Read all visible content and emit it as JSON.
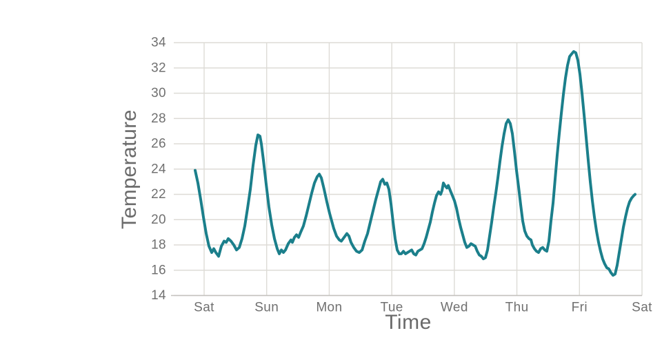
{
  "figure": {
    "background": "#ffffff"
  },
  "chart_data": {
    "type": "line",
    "title": "",
    "xlabel": "Time",
    "ylabel": "Temperature",
    "legend": "none",
    "grid": true,
    "xlim": [
      -0.485,
      7.0
    ],
    "ylim": [
      14,
      34
    ],
    "y_ticks": [
      14,
      16,
      18,
      20,
      22,
      24,
      26,
      28,
      30,
      32,
      34
    ],
    "x_tick_positions": [
      0,
      1,
      2,
      3,
      4,
      5,
      6,
      7
    ],
    "x_tick_labels": [
      "Sat",
      "Sun",
      "Mon",
      "Tue",
      "Wed",
      "Thu",
      "Fri",
      "Sat"
    ],
    "colors": {
      "line": "#1b7f8b",
      "grid": "#dddbd6",
      "spine": "#c3c1bd",
      "tick_label": "#707070",
      "axis_label": "#6a6a6a"
    },
    "series": [
      {
        "name": "temperature",
        "units": "degrees",
        "points": [
          [
            -0.143,
            23.9
          ],
          [
            -0.099,
            22.9
          ],
          [
            -0.055,
            21.6
          ],
          [
            -0.011,
            20.2
          ],
          [
            0.033,
            18.9
          ],
          [
            0.077,
            17.9
          ],
          [
            0.121,
            17.4
          ],
          [
            0.154,
            17.7
          ],
          [
            0.187,
            17.4
          ],
          [
            0.232,
            17.1
          ],
          [
            0.276,
            17.9
          ],
          [
            0.32,
            18.3
          ],
          [
            0.353,
            18.2
          ],
          [
            0.386,
            18.5
          ],
          [
            0.43,
            18.3
          ],
          [
            0.474,
            18.0
          ],
          [
            0.518,
            17.6
          ],
          [
            0.562,
            17.8
          ],
          [
            0.606,
            18.5
          ],
          [
            0.65,
            19.5
          ],
          [
            0.694,
            20.9
          ],
          [
            0.739,
            22.4
          ],
          [
            0.783,
            24.3
          ],
          [
            0.827,
            25.9
          ],
          [
            0.86,
            26.7
          ],
          [
            0.893,
            26.6
          ],
          [
            0.915,
            26.0
          ],
          [
            0.948,
            24.7
          ],
          [
            0.992,
            22.8
          ],
          [
            1.036,
            21.0
          ],
          [
            1.08,
            19.6
          ],
          [
            1.124,
            18.5
          ],
          [
            1.169,
            17.7
          ],
          [
            1.202,
            17.3
          ],
          [
            1.235,
            17.6
          ],
          [
            1.268,
            17.4
          ],
          [
            1.301,
            17.6
          ],
          [
            1.345,
            18.1
          ],
          [
            1.389,
            18.4
          ],
          [
            1.411,
            18.2
          ],
          [
            1.444,
            18.6
          ],
          [
            1.477,
            18.8
          ],
          [
            1.51,
            18.6
          ],
          [
            1.543,
            19.0
          ],
          [
            1.587,
            19.5
          ],
          [
            1.632,
            20.3
          ],
          [
            1.676,
            21.2
          ],
          [
            1.72,
            22.1
          ],
          [
            1.764,
            22.9
          ],
          [
            1.808,
            23.4
          ],
          [
            1.841,
            23.6
          ],
          [
            1.874,
            23.3
          ],
          [
            1.918,
            22.4
          ],
          [
            1.962,
            21.4
          ],
          [
            2.006,
            20.5
          ],
          [
            2.039,
            19.9
          ],
          [
            2.073,
            19.3
          ],
          [
            2.117,
            18.7
          ],
          [
            2.161,
            18.4
          ],
          [
            2.194,
            18.3
          ],
          [
            2.238,
            18.6
          ],
          [
            2.282,
            18.9
          ],
          [
            2.315,
            18.7
          ],
          [
            2.348,
            18.2
          ],
          [
            2.392,
            17.8
          ],
          [
            2.436,
            17.5
          ],
          [
            2.48,
            17.4
          ],
          [
            2.525,
            17.6
          ],
          [
            2.569,
            18.3
          ],
          [
            2.613,
            18.9
          ],
          [
            2.657,
            19.8
          ],
          [
            2.701,
            20.7
          ],
          [
            2.745,
            21.6
          ],
          [
            2.789,
            22.4
          ],
          [
            2.822,
            23.0
          ],
          [
            2.855,
            23.2
          ],
          [
            2.888,
            22.8
          ],
          [
            2.921,
            22.9
          ],
          [
            2.954,
            22.4
          ],
          [
            2.988,
            21.2
          ],
          [
            3.021,
            19.8
          ],
          [
            3.054,
            18.5
          ],
          [
            3.087,
            17.6
          ],
          [
            3.12,
            17.3
          ],
          [
            3.153,
            17.3
          ],
          [
            3.186,
            17.5
          ],
          [
            3.219,
            17.3
          ],
          [
            3.252,
            17.4
          ],
          [
            3.285,
            17.5
          ],
          [
            3.318,
            17.6
          ],
          [
            3.351,
            17.3
          ],
          [
            3.384,
            17.2
          ],
          [
            3.417,
            17.5
          ],
          [
            3.451,
            17.6
          ],
          [
            3.484,
            17.7
          ],
          [
            3.517,
            18.1
          ],
          [
            3.55,
            18.6
          ],
          [
            3.583,
            19.2
          ],
          [
            3.616,
            19.8
          ],
          [
            3.649,
            20.6
          ],
          [
            3.682,
            21.3
          ],
          [
            3.715,
            21.9
          ],
          [
            3.748,
            22.2
          ],
          [
            3.781,
            22.0
          ],
          [
            3.803,
            22.3
          ],
          [
            3.825,
            22.9
          ],
          [
            3.848,
            22.7
          ],
          [
            3.881,
            22.5
          ],
          [
            3.903,
            22.7
          ],
          [
            3.936,
            22.3
          ],
          [
            3.969,
            21.9
          ],
          [
            4.002,
            21.5
          ],
          [
            4.035,
            20.9
          ],
          [
            4.068,
            20.1
          ],
          [
            4.101,
            19.4
          ],
          [
            4.134,
            18.8
          ],
          [
            4.167,
            18.2
          ],
          [
            4.2,
            17.8
          ],
          [
            4.233,
            17.9
          ],
          [
            4.266,
            18.1
          ],
          [
            4.299,
            18.0
          ],
          [
            4.333,
            17.9
          ],
          [
            4.366,
            17.5
          ],
          [
            4.399,
            17.2
          ],
          [
            4.432,
            17.1
          ],
          [
            4.465,
            16.9
          ],
          [
            4.498,
            17.0
          ],
          [
            4.531,
            17.6
          ],
          [
            4.564,
            18.7
          ],
          [
            4.597,
            19.8
          ],
          [
            4.63,
            21.0
          ],
          [
            4.663,
            22.1
          ],
          [
            4.696,
            23.3
          ],
          [
            4.729,
            24.6
          ],
          [
            4.762,
            25.8
          ],
          [
            4.795,
            26.8
          ],
          [
            4.828,
            27.6
          ],
          [
            4.861,
            27.9
          ],
          [
            4.895,
            27.6
          ],
          [
            4.928,
            26.8
          ],
          [
            4.961,
            25.4
          ],
          [
            4.994,
            23.9
          ],
          [
            5.027,
            22.6
          ],
          [
            5.06,
            21.2
          ],
          [
            5.093,
            19.9
          ],
          [
            5.126,
            19.1
          ],
          [
            5.159,
            18.7
          ],
          [
            5.192,
            18.5
          ],
          [
            5.225,
            18.4
          ],
          [
            5.247,
            18.0
          ],
          [
            5.28,
            17.7
          ],
          [
            5.313,
            17.5
          ],
          [
            5.346,
            17.4
          ],
          [
            5.38,
            17.7
          ],
          [
            5.413,
            17.8
          ],
          [
            5.446,
            17.6
          ],
          [
            5.479,
            17.5
          ],
          [
            5.512,
            18.3
          ],
          [
            5.545,
            19.9
          ],
          [
            5.578,
            21.3
          ],
          [
            5.611,
            23.2
          ],
          [
            5.644,
            25.1
          ],
          [
            5.677,
            26.8
          ],
          [
            5.71,
            28.4
          ],
          [
            5.743,
            29.9
          ],
          [
            5.776,
            31.2
          ],
          [
            5.809,
            32.2
          ],
          [
            5.842,
            32.9
          ],
          [
            5.875,
            33.1
          ],
          [
            5.908,
            33.3
          ],
          [
            5.942,
            33.2
          ],
          [
            5.975,
            32.6
          ],
          [
            6.008,
            31.5
          ],
          [
            6.041,
            30.0
          ],
          [
            6.074,
            28.3
          ],
          [
            6.107,
            26.5
          ],
          [
            6.14,
            24.7
          ],
          [
            6.173,
            23.0
          ],
          [
            6.206,
            21.5
          ],
          [
            6.239,
            20.2
          ],
          [
            6.272,
            19.1
          ],
          [
            6.305,
            18.2
          ],
          [
            6.338,
            17.5
          ],
          [
            6.371,
            16.9
          ],
          [
            6.404,
            16.5
          ],
          [
            6.437,
            16.2
          ],
          [
            6.471,
            16.1
          ],
          [
            6.504,
            15.8
          ],
          [
            6.537,
            15.6
          ],
          [
            6.57,
            15.7
          ],
          [
            6.603,
            16.4
          ],
          [
            6.636,
            17.4
          ],
          [
            6.669,
            18.4
          ],
          [
            6.702,
            19.4
          ],
          [
            6.735,
            20.2
          ],
          [
            6.768,
            20.9
          ],
          [
            6.801,
            21.4
          ],
          [
            6.834,
            21.7
          ],
          [
            6.868,
            21.9
          ],
          [
            6.89,
            22.0
          ]
        ]
      }
    ]
  }
}
